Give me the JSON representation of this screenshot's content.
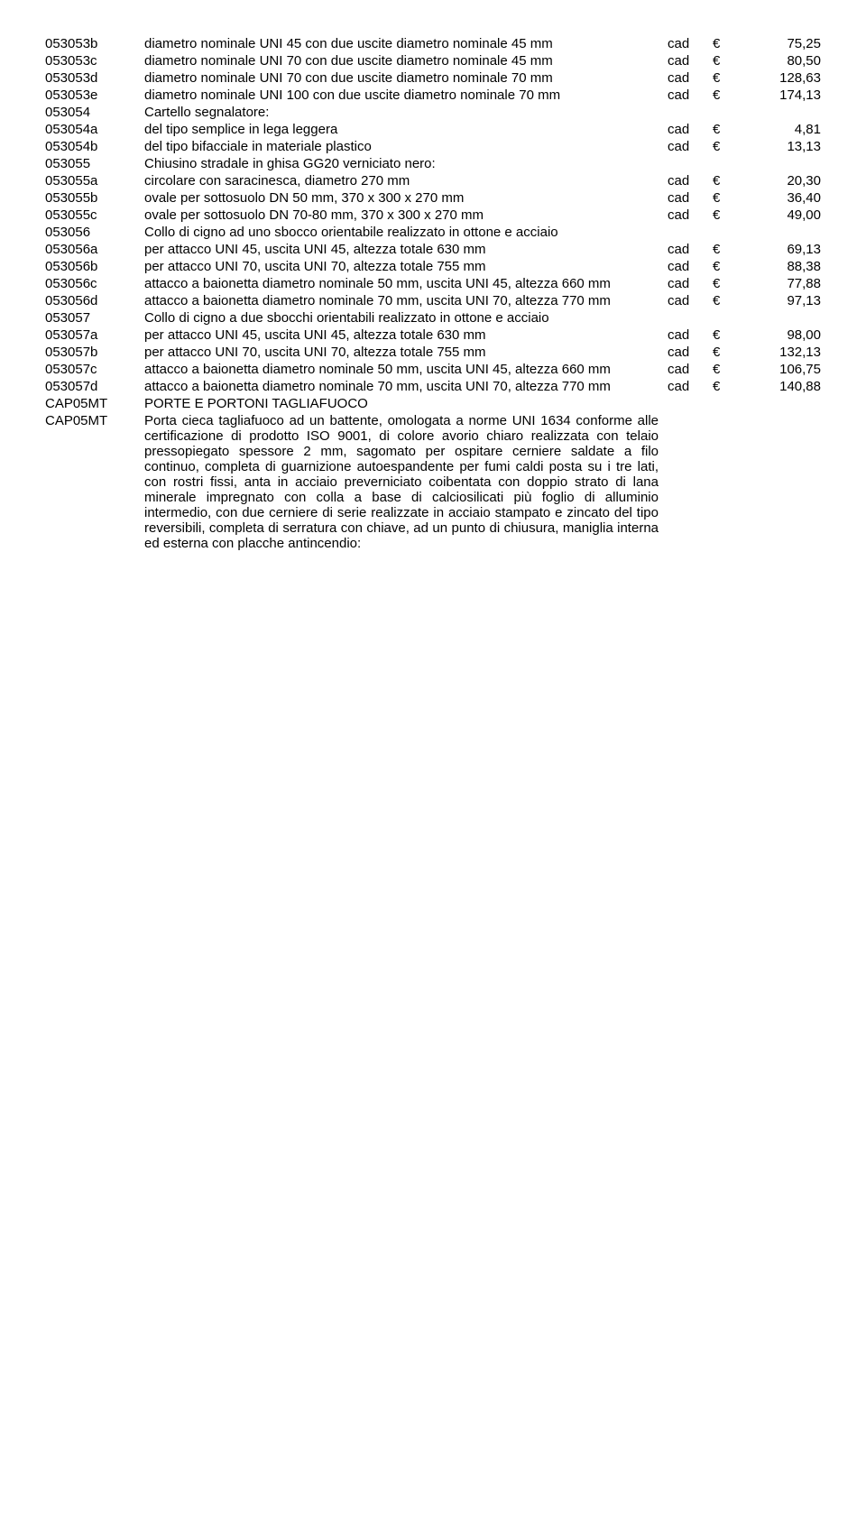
{
  "rows": [
    {
      "code": "053053b",
      "desc": "diametro nominale UNI 45 con due uscite diametro nominale 45 mm",
      "unit": "cad",
      "currency": "€",
      "price": "75,25"
    },
    {
      "code": "053053c",
      "desc": "diametro nominale UNI 70 con due uscite diametro nominale 45 mm",
      "unit": "cad",
      "currency": "€",
      "price": "80,50"
    },
    {
      "code": "053053d",
      "desc": "diametro nominale UNI 70 con due uscite diametro nominale 70 mm",
      "unit": "cad",
      "currency": "€",
      "price": "128,63"
    },
    {
      "code": "053053e",
      "desc": "diametro nominale UNI 100 con due uscite diametro nominale 70 mm",
      "unit": "cad",
      "currency": "€",
      "price": "174,13"
    },
    {
      "code": "053054",
      "desc": "Cartello segnalatore:",
      "unit": "",
      "currency": "",
      "price": ""
    },
    {
      "code": "053054a",
      "desc": "del tipo semplice in lega leggera",
      "unit": "cad",
      "currency": "€",
      "price": "4,81"
    },
    {
      "code": "053054b",
      "desc": "del tipo bifacciale in materiale plastico",
      "unit": "cad",
      "currency": "€",
      "price": "13,13"
    },
    {
      "code": "053055",
      "desc": "Chiusino stradale in ghisa GG20 verniciato nero:",
      "unit": "",
      "currency": "",
      "price": ""
    },
    {
      "code": "053055a",
      "desc": "circolare con saracinesca, diametro 270 mm",
      "unit": "cad",
      "currency": "€",
      "price": "20,30"
    },
    {
      "code": "053055b",
      "desc": "ovale per sottosuolo DN 50 mm, 370 x 300 x 270 mm",
      "unit": "cad",
      "currency": "€",
      "price": "36,40"
    },
    {
      "code": "053055c",
      "desc": "ovale per sottosuolo DN 70-80 mm, 370 x 300 x 270 mm",
      "unit": "cad",
      "currency": "€",
      "price": "49,00"
    },
    {
      "code": "053056",
      "desc": "Collo di cigno ad uno sbocco orientabile realizzato in ottone e acciaio",
      "unit": "",
      "currency": "",
      "price": ""
    },
    {
      "code": "053056a",
      "desc": "per attacco UNI 45, uscita UNI 45, altezza totale 630 mm",
      "unit": "cad",
      "currency": "€",
      "price": "69,13"
    },
    {
      "code": "053056b",
      "desc": "per attacco UNI 70, uscita UNI 70, altezza totale 755 mm",
      "unit": "cad",
      "currency": "€",
      "price": "88,38"
    },
    {
      "code": "053056c",
      "desc": "attacco a baionetta diametro nominale 50 mm, uscita UNI 45, altezza 660 mm",
      "unit": "cad",
      "currency": "€",
      "price": "77,88"
    },
    {
      "code": "053056d",
      "desc": "attacco a baionetta diametro nominale 70 mm, uscita UNI 70, altezza 770 mm",
      "unit": "cad",
      "currency": "€",
      "price": "97,13"
    },
    {
      "code": "053057",
      "desc": "Collo di cigno a due sbocchi orientabili realizzato in ottone e acciaio",
      "unit": "",
      "currency": "",
      "price": ""
    },
    {
      "code": "053057a",
      "desc": "per attacco UNI 45, uscita UNI 45, altezza totale 630 mm",
      "unit": "cad",
      "currency": "€",
      "price": "98,00"
    },
    {
      "code": "053057b",
      "desc": "per attacco UNI 70, uscita UNI 70, altezza totale 755 mm",
      "unit": "cad",
      "currency": "€",
      "price": "132,13"
    },
    {
      "code": "053057c",
      "desc": "attacco a baionetta diametro nominale 50 mm, uscita UNI 45, altezza 660 mm",
      "unit": "cad",
      "currency": "€",
      "price": "106,75"
    },
    {
      "code": "053057d",
      "desc": "attacco a baionetta diametro nominale 70 mm, uscita UNI 70, altezza 770 mm",
      "unit": "cad",
      "currency": "€",
      "price": "140,88"
    },
    {
      "code": "CAP05MT",
      "desc": "PORTE E PORTONI TAGLIAFUOCO",
      "unit": "",
      "currency": "",
      "price": ""
    },
    {
      "code": "CAP05MT",
      "desc": "Porta cieca tagliafuoco ad un battente, omologata a norme UNI 1634 conforme alle certificazione di prodotto ISO 9001, di colore avorio chiaro realizzata con telaio pressopiegato spessore 2 mm, sagomato per ospitare cerniere saldate a filo continuo, completa di guarnizione autoespandente per fumi caldi posta su i tre lati, con rostri fissi, anta in acciaio preverniciato coibentata con doppio strato di lana minerale impregnato con colla a base di calciosilicati più foglio di alluminio intermedio, con due cerniere di serie realizzate in acciaio stampato e zincato del tipo reversibili, completa di serratura con chiave, ad un punto di chiusura, maniglia interna ed esterna con placche antincendio:",
      "unit": "",
      "currency": "",
      "price": ""
    }
  ]
}
